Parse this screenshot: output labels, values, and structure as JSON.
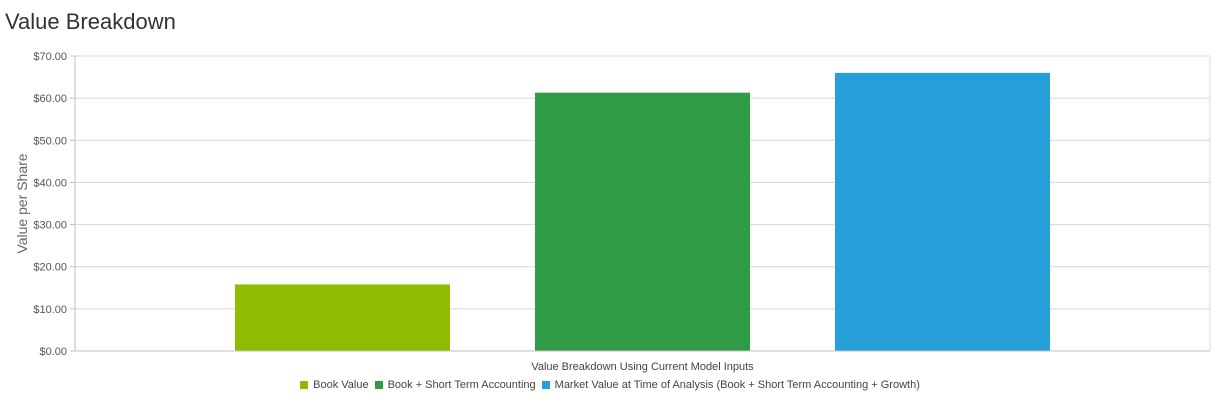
{
  "page_title": "Value Breakdown",
  "chart_data": {
    "type": "bar",
    "title": "",
    "ylabel": "Value per Share",
    "xlabel": "",
    "ylim": [
      0,
      70
    ],
    "yticks": [
      "$0.00",
      "$10.00",
      "$20.00",
      "$30.00",
      "$40.00",
      "$50.00",
      "$60.00",
      "$70.00"
    ],
    "categories": [
      "Value Breakdown Using Current Model Inputs"
    ],
    "series": [
      {
        "name": "Book Value",
        "color": "#8fbc00",
        "values": [
          15.8
        ]
      },
      {
        "name": "Book + Short Term Accounting",
        "color": "#2f9b47",
        "values": [
          61.3
        ]
      },
      {
        "name": "Market Value at Time of Analysis (Book + Short Term Accounting + Growth)",
        "color": "#27a0da",
        "values": [
          66.0
        ]
      }
    ],
    "grid": true,
    "legend_position": "bottom"
  }
}
